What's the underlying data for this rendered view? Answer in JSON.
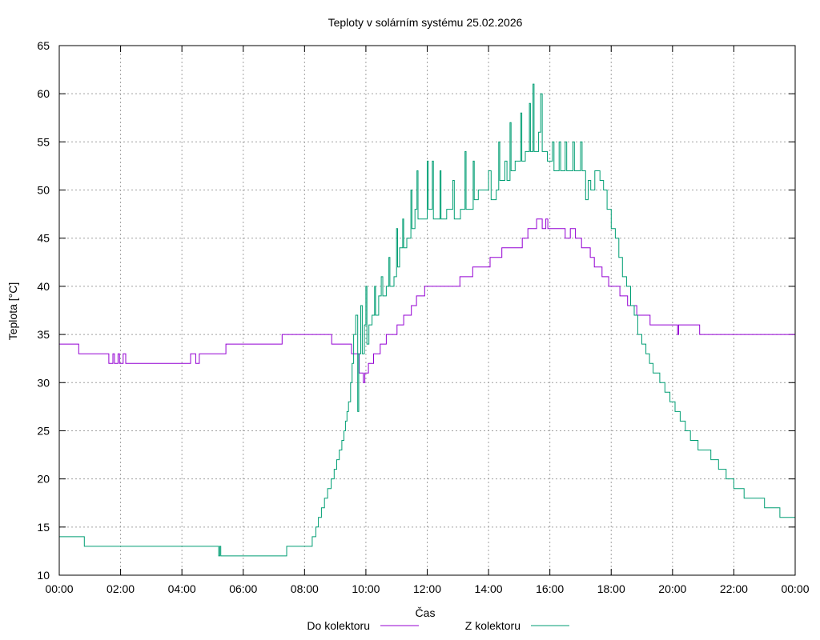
{
  "chart_data": {
    "type": "line",
    "title": "Teploty v solárním systému 25.02.2026",
    "xlabel": "Čas",
    "ylabel": "Teplota [°C]",
    "xlim": [
      "00:00",
      "24:00"
    ],
    "ylim": [
      10,
      65
    ],
    "x_ticks": [
      "00:00",
      "02:00",
      "04:00",
      "06:00",
      "08:00",
      "10:00",
      "12:00",
      "14:00",
      "16:00",
      "18:00",
      "20:00",
      "22:00",
      "00:00"
    ],
    "y_ticks": [
      "10",
      "15",
      "20",
      "25",
      "30",
      "35",
      "40",
      "45",
      "50",
      "55",
      "60",
      "65"
    ],
    "grid": true,
    "legend_position": "bottom",
    "step": true,
    "series": [
      {
        "name": "Do kolektoru",
        "color": "#9400d3",
        "points": [
          [
            "00:00",
            34
          ],
          [
            "00:38",
            33
          ],
          [
            "01:37",
            32
          ],
          [
            "01:45",
            33
          ],
          [
            "01:48",
            32
          ],
          [
            "01:55",
            33
          ],
          [
            "01:58",
            32
          ],
          [
            "02:05",
            33
          ],
          [
            "02:10",
            32
          ],
          [
            "04:17",
            33
          ],
          [
            "04:27",
            32
          ],
          [
            "04:34",
            33
          ],
          [
            "05:26",
            34
          ],
          [
            "07:16",
            35
          ],
          [
            "08:53",
            34
          ],
          [
            "09:32",
            33
          ],
          [
            "09:47",
            31
          ],
          [
            "09:55",
            30
          ],
          [
            "09:58",
            31
          ],
          [
            "10:05",
            32
          ],
          [
            "10:15",
            33
          ],
          [
            "10:28",
            34
          ],
          [
            "10:40",
            35
          ],
          [
            "11:01",
            36
          ],
          [
            "11:14",
            37
          ],
          [
            "11:29",
            38
          ],
          [
            "11:39",
            39
          ],
          [
            "11:55",
            40
          ],
          [
            "13:04",
            41
          ],
          [
            "13:29",
            42
          ],
          [
            "14:03",
            43
          ],
          [
            "14:26",
            44
          ],
          [
            "15:06",
            45
          ],
          [
            "15:17",
            46
          ],
          [
            "15:34",
            47
          ],
          [
            "15:45",
            46
          ],
          [
            "15:52",
            47
          ],
          [
            "15:56",
            46
          ],
          [
            "16:30",
            45
          ],
          [
            "16:40",
            46
          ],
          [
            "16:50",
            45
          ],
          [
            "17:02",
            44
          ],
          [
            "17:19",
            43
          ],
          [
            "17:27",
            42
          ],
          [
            "17:42",
            41
          ],
          [
            "17:55",
            40
          ],
          [
            "18:17",
            39
          ],
          [
            "18:32",
            38
          ],
          [
            "18:50",
            37
          ],
          [
            "19:16",
            36
          ],
          [
            "20:10",
            35
          ],
          [
            "20:12",
            36
          ],
          [
            "20:53",
            35
          ],
          [
            "24:00",
            35
          ]
        ]
      },
      {
        "name": "Z kolektoru",
        "color": "#009e73",
        "points": [
          [
            "00:00",
            14
          ],
          [
            "00:49",
            13
          ],
          [
            "05:12",
            12
          ],
          [
            "05:14",
            13
          ],
          [
            "05:16",
            12
          ],
          [
            "07:25",
            13
          ],
          [
            "08:15",
            14
          ],
          [
            "08:22",
            15
          ],
          [
            "08:27",
            16
          ],
          [
            "08:33",
            17
          ],
          [
            "08:39",
            18
          ],
          [
            "08:45",
            19
          ],
          [
            "08:52",
            20
          ],
          [
            "08:58",
            21
          ],
          [
            "09:03",
            22
          ],
          [
            "09:08",
            23
          ],
          [
            "09:13",
            24
          ],
          [
            "09:17",
            25
          ],
          [
            "09:20",
            26
          ],
          [
            "09:23",
            27
          ],
          [
            "09:26",
            28
          ],
          [
            "09:30",
            30
          ],
          [
            "09:33",
            32
          ],
          [
            "09:36",
            35
          ],
          [
            "09:40",
            37
          ],
          [
            "09:44",
            27
          ],
          [
            "09:46",
            33
          ],
          [
            "09:50",
            38
          ],
          [
            "09:53",
            33
          ],
          [
            "09:57",
            36
          ],
          [
            "10:00",
            40
          ],
          [
            "10:02",
            34
          ],
          [
            "10:06",
            36
          ],
          [
            "10:12",
            37
          ],
          [
            "10:17",
            40
          ],
          [
            "10:19",
            37
          ],
          [
            "10:25",
            39
          ],
          [
            "10:30",
            41
          ],
          [
            "10:33",
            39
          ],
          [
            "10:40",
            40
          ],
          [
            "10:45",
            43
          ],
          [
            "10:47",
            40
          ],
          [
            "10:55",
            41
          ],
          [
            "11:00",
            46
          ],
          [
            "11:02",
            42
          ],
          [
            "11:06",
            44
          ],
          [
            "11:12",
            47
          ],
          [
            "11:14",
            44
          ],
          [
            "11:20",
            45
          ],
          [
            "11:28",
            50
          ],
          [
            "11:30",
            46
          ],
          [
            "11:36",
            48
          ],
          [
            "11:40",
            52
          ],
          [
            "11:42",
            47
          ],
          [
            "12:00",
            53
          ],
          [
            "12:02",
            48
          ],
          [
            "12:10",
            53
          ],
          [
            "12:12",
            47
          ],
          [
            "12:25",
            52
          ],
          [
            "12:27",
            47
          ],
          [
            "12:38",
            48
          ],
          [
            "12:50",
            51
          ],
          [
            "12:53",
            47
          ],
          [
            "13:05",
            48
          ],
          [
            "13:14",
            54
          ],
          [
            "13:16",
            48
          ],
          [
            "13:30",
            53
          ],
          [
            "13:32",
            49
          ],
          [
            "13:40",
            50
          ],
          [
            "14:00",
            52
          ],
          [
            "14:05",
            49
          ],
          [
            "14:15",
            50
          ],
          [
            "14:20",
            55
          ],
          [
            "14:22",
            51
          ],
          [
            "14:32",
            53
          ],
          [
            "14:36",
            51
          ],
          [
            "14:42",
            57
          ],
          [
            "14:44",
            52
          ],
          [
            "14:52",
            53
          ],
          [
            "15:03",
            58
          ],
          [
            "15:05",
            53
          ],
          [
            "15:12",
            54
          ],
          [
            "15:20",
            59
          ],
          [
            "15:22",
            54
          ],
          [
            "15:27",
            61
          ],
          [
            "15:29",
            54
          ],
          [
            "15:38",
            56
          ],
          [
            "15:42",
            60
          ],
          [
            "15:45",
            54
          ],
          [
            "15:55",
            53
          ],
          [
            "16:05",
            55
          ],
          [
            "16:08",
            52
          ],
          [
            "16:18",
            55
          ],
          [
            "16:21",
            52
          ],
          [
            "16:30",
            55
          ],
          [
            "16:33",
            52
          ],
          [
            "16:45",
            55
          ],
          [
            "16:48",
            52
          ],
          [
            "17:00",
            55
          ],
          [
            "17:03",
            52
          ],
          [
            "17:10",
            49
          ],
          [
            "17:15",
            51
          ],
          [
            "17:20",
            50
          ],
          [
            "17:28",
            52
          ],
          [
            "17:38",
            51
          ],
          [
            "17:45",
            50
          ],
          [
            "17:52",
            48
          ],
          [
            "18:00",
            46
          ],
          [
            "18:08",
            45
          ],
          [
            "18:15",
            43
          ],
          [
            "18:22",
            41
          ],
          [
            "18:30",
            40
          ],
          [
            "18:38",
            38
          ],
          [
            "18:45",
            37
          ],
          [
            "18:52",
            35
          ],
          [
            "19:00",
            34
          ],
          [
            "19:08",
            33
          ],
          [
            "19:15",
            32
          ],
          [
            "19:22",
            31
          ],
          [
            "19:35",
            30
          ],
          [
            "19:45",
            29
          ],
          [
            "19:55",
            28
          ],
          [
            "20:05",
            27
          ],
          [
            "20:15",
            26
          ],
          [
            "20:25",
            25
          ],
          [
            "20:35",
            24
          ],
          [
            "20:50",
            23
          ],
          [
            "21:15",
            22
          ],
          [
            "21:30",
            21
          ],
          [
            "21:45",
            20
          ],
          [
            "22:00",
            19
          ],
          [
            "22:20",
            18
          ],
          [
            "23:00",
            17
          ],
          [
            "23:30",
            16
          ],
          [
            "24:00",
            15
          ]
        ]
      }
    ]
  }
}
